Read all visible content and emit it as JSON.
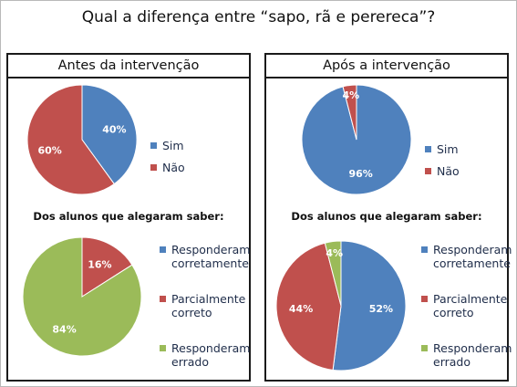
{
  "title": "Qual a diferença entre “sapo, rã e perereca”?",
  "colors": {
    "blue": "#4f81bd",
    "red": "#c0504d",
    "green": "#9bbb59"
  },
  "panels": [
    {
      "heading": "Antes da intervenção",
      "subheading": "Dos alunos que alegaram saber:"
    },
    {
      "heading": "Após a intervenção",
      "subheading": "Dos alunos que alegaram saber:"
    }
  ],
  "chart_data": [
    {
      "type": "pie",
      "panel": "Antes da intervenção",
      "slices": [
        {
          "name": "Sim",
          "value": 40,
          "label": "40%",
          "color": "#4f81bd"
        },
        {
          "name": "Não",
          "value": 60,
          "label": "60%",
          "color": "#c0504d"
        }
      ],
      "legend": [
        "Sim",
        "Não"
      ]
    },
    {
      "type": "pie",
      "panel": "Antes da intervenção",
      "subtitle": "Dos alunos que alegaram saber:",
      "slices": [
        {
          "name": "Parcialmente correto",
          "value": 16,
          "label": "16%",
          "color": "#c0504d"
        },
        {
          "name": "Responderam errado",
          "value": 84,
          "label": "84%",
          "color": "#9bbb59"
        }
      ],
      "legend": [
        "Responderam corretamente",
        "Parcialmente correto",
        "Responderam errado"
      ]
    },
    {
      "type": "pie",
      "panel": "Após a intervenção",
      "slices": [
        {
          "name": "Sim",
          "value": 96,
          "label": "96%",
          "color": "#4f81bd"
        },
        {
          "name": "Não",
          "value": 4,
          "label": "4%",
          "color": "#c0504d"
        }
      ],
      "legend": [
        "Sim",
        "Não"
      ]
    },
    {
      "type": "pie",
      "panel": "Após a intervenção",
      "subtitle": "Dos alunos que alegaram saber:",
      "slices": [
        {
          "name": "Responderam corretamente",
          "value": 52,
          "label": "52%",
          "color": "#4f81bd"
        },
        {
          "name": "Parcialmente correto",
          "value": 44,
          "label": "44%",
          "color": "#c0504d"
        },
        {
          "name": "Responderam errado",
          "value": 4,
          "label": "4%",
          "color": "#9bbb59"
        }
      ],
      "legend": [
        "Responderam corretamente",
        "Parcialmente correto",
        "Responderam errado"
      ]
    }
  ],
  "legends": {
    "yes_no": [
      {
        "text": "Sim",
        "color": "#4f81bd"
      },
      {
        "text": "Não",
        "color": "#c0504d"
      }
    ],
    "answers": [
      {
        "text": "Responderam\ncorretamente",
        "color": "#4f81bd"
      },
      {
        "text": "Parcialmente\ncorreto",
        "color": "#c0504d"
      },
      {
        "text": "Responderam\nerrado",
        "color": "#9bbb59"
      }
    ]
  }
}
